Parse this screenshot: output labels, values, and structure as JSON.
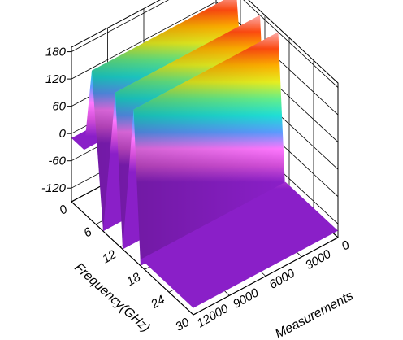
{
  "chart_data": {
    "type": "surface",
    "title": "",
    "zlabel": "",
    "z_ticks": [
      "180",
      "120",
      "60",
      "0",
      "-60",
      "-120"
    ],
    "zlim": [
      -150,
      190
    ],
    "x_axis": {
      "label": "Frequency(GHz)",
      "ticks": [
        "0",
        "6",
        "12",
        "18",
        "24",
        "30"
      ],
      "range": [
        0,
        30
      ]
    },
    "y_axis": {
      "label": "Measurements",
      "ticks": [
        "0",
        "3000",
        "6000",
        "9000",
        "12000"
      ],
      "range": [
        0,
        12000
      ]
    },
    "colormap": [
      "#8a1fc8",
      "#d24ed8",
      "#ff78ff",
      "#5b9cff",
      "#1ee0d8",
      "#66f08a",
      "#e8f020",
      "#ffb000",
      "#ff4a10",
      "#ffb0b0"
    ],
    "series": [
      {
        "values_vs_frequency": [
          [
            0.0,
            -10
          ],
          [
            3.1,
            -10
          ],
          [
            5.0,
            180
          ],
          [
            7.8,
            -150
          ],
          [
            10.8,
            180
          ],
          [
            12.6,
            -150
          ],
          [
            15.3,
            180
          ],
          [
            17.0,
            -150
          ],
          [
            17.1,
            -135
          ],
          [
            30.0,
            -135
          ]
        ]
      }
    ]
  }
}
